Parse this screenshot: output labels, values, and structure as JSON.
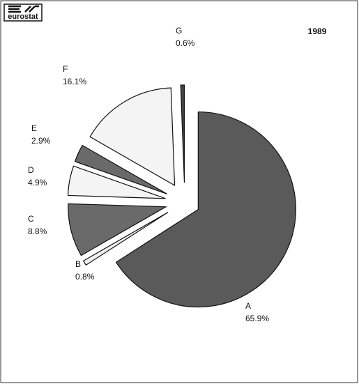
{
  "logo": "eurostat",
  "chart_data": {
    "type": "pie",
    "title": "1989",
    "categories": [
      "A",
      "B",
      "C",
      "D",
      "E",
      "F",
      "G"
    ],
    "values": [
      65.9,
      0.8,
      8.8,
      4.9,
      2.9,
      16.1,
      0.6
    ],
    "value_labels": [
      "65.9%",
      "0.8%",
      "8.8%",
      "4.9%",
      "2.9%",
      "16.1%",
      "0.6%"
    ],
    "colors": [
      "#5a5a5a",
      "#f0f0f0",
      "#6a6a6a",
      "#f4f4f4",
      "#6a6a6a",
      "#f4f4f4",
      "#444444"
    ]
  }
}
